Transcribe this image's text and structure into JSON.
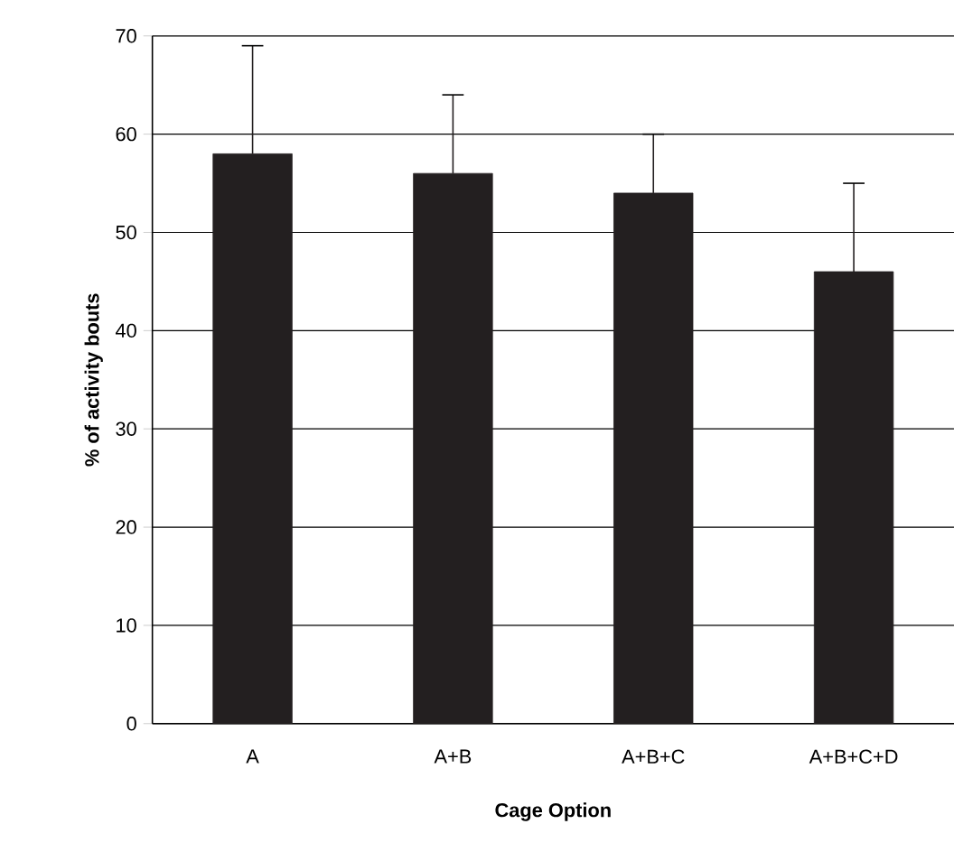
{
  "chart_data": {
    "type": "bar",
    "xlabel": "Cage Option",
    "ylabel": "% of activity bouts",
    "categories": [
      "A",
      "A+B",
      "A+B+C",
      "A+B+C+D"
    ],
    "values": [
      58,
      56,
      54,
      46
    ],
    "errors": [
      11,
      8,
      6,
      9
    ],
    "color": "#231f20",
    "ylim": [
      0,
      70
    ],
    "yticks": [
      0,
      10,
      20,
      30,
      40,
      50,
      60,
      70
    ],
    "grid": "y"
  }
}
